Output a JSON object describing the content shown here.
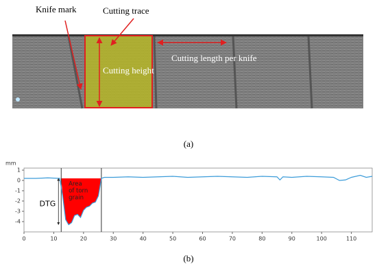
{
  "panel_a": {
    "labels": {
      "knife_mark": "Knife mark",
      "cutting_trace": "Cutting trace",
      "cutting_height": "Cutting height",
      "cutting_length": "Cutting length per knife"
    },
    "caption": "(a)"
  },
  "chart_data": {
    "type": "line",
    "y_unit": "mm",
    "caption": "(b)",
    "annotations": {
      "dtg": "DTG",
      "area": [
        "Area",
        "of torn",
        "grain"
      ]
    },
    "x": [
      0,
      4,
      8,
      12,
      13,
      14,
      15,
      16,
      17,
      18,
      19,
      20,
      21,
      22,
      23,
      24,
      25,
      26,
      27,
      30,
      35,
      40,
      45,
      50,
      55,
      60,
      65,
      70,
      75,
      80,
      85,
      86,
      87,
      90,
      95,
      100,
      104,
      106,
      108,
      110,
      113,
      115,
      117
    ],
    "series": [
      {
        "color": "#3a9bd9",
        "values": [
          0.2,
          0.2,
          0.25,
          0.2,
          -1.5,
          -3.8,
          -4.3,
          -4.1,
          -3.4,
          -3.3,
          -3.6,
          -2.9,
          -2.6,
          -2.5,
          -2.2,
          -2.1,
          -1.5,
          0.2,
          0.3,
          0.3,
          0.35,
          0.3,
          0.35,
          0.4,
          0.3,
          0.35,
          0.4,
          0.35,
          0.3,
          0.4,
          0.35,
          0.05,
          0.35,
          0.3,
          0.4,
          0.35,
          0.3,
          0.0,
          0.05,
          0.3,
          0.5,
          0.3,
          0.4
        ]
      }
    ],
    "vlines": [
      12.5,
      26
    ],
    "fill_color": "#ff0000",
    "xlim": [
      0,
      117
    ],
    "ylim": [
      -5,
      1.2
    ],
    "xticks": [
      0,
      10,
      20,
      30,
      40,
      50,
      60,
      70,
      80,
      90,
      100,
      110
    ],
    "yticks": [
      1,
      0,
      -1,
      -2,
      -3,
      -4
    ]
  }
}
